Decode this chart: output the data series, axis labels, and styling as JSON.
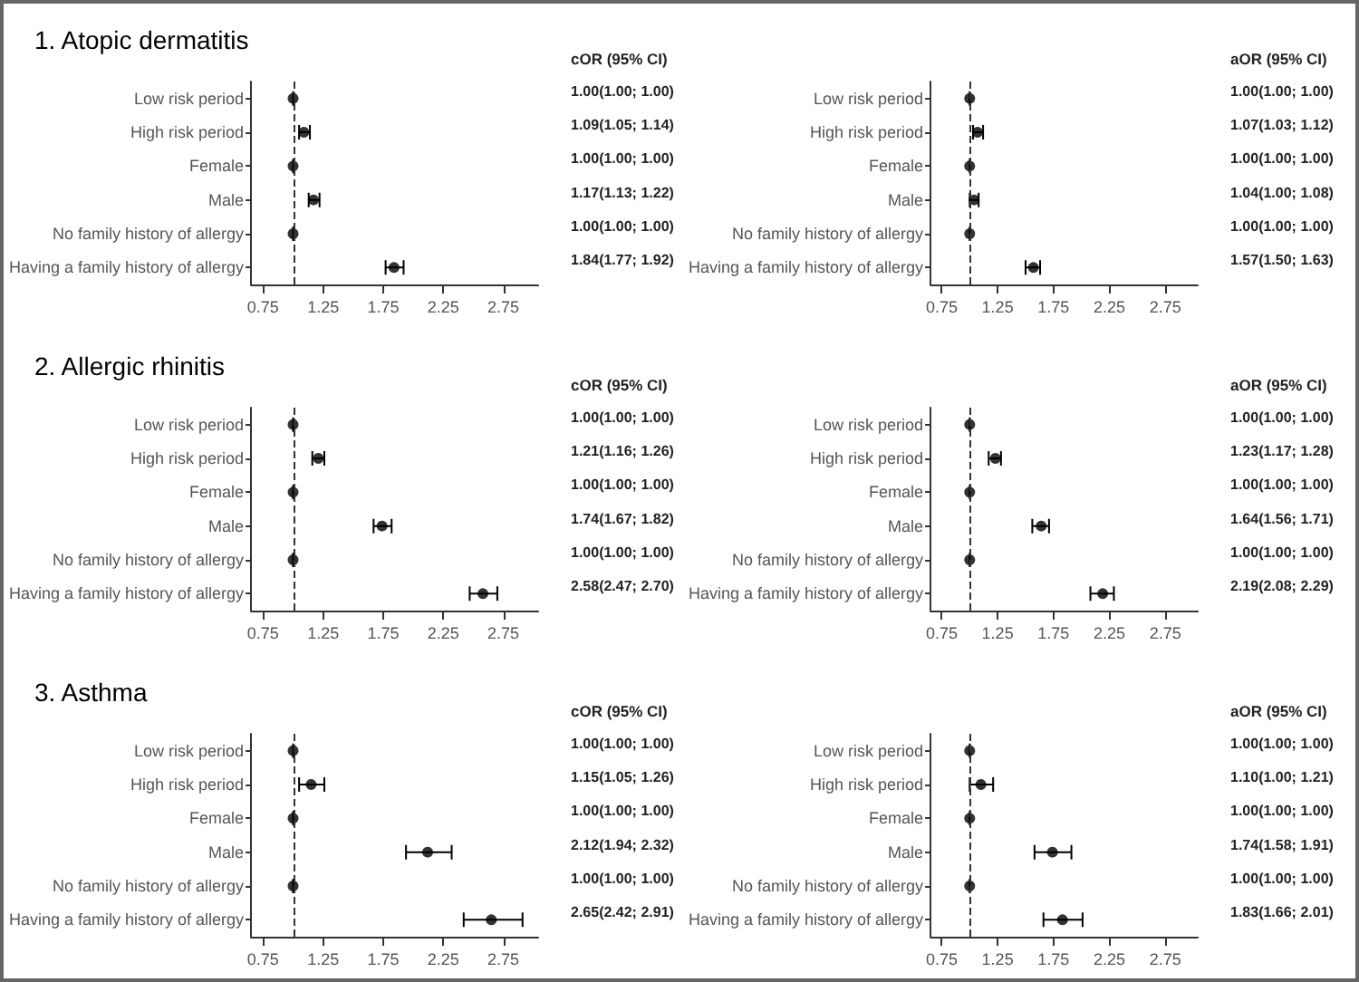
{
  "chart_data": [
    {
      "type": "scatter",
      "orientation": "horizontal",
      "title": "1. Atopic dermatitis",
      "annotations": [
        "cOR (95% CI)"
      ],
      "categories": [
        "Low risk period",
        "High risk period",
        "Female",
        "Male",
        "No family history of allergy",
        "Having a family history of allergy"
      ],
      "values": [
        1.0,
        1.09,
        1.0,
        1.17,
        1.0,
        1.84
      ],
      "errors": [
        [
          1.0,
          1.0
        ],
        [
          1.05,
          1.14
        ],
        [
          1.0,
          1.0
        ],
        [
          1.13,
          1.22
        ],
        [
          1.0,
          1.0
        ],
        [
          1.77,
          1.92
        ]
      ],
      "value_labels": [
        "1.00(1.00; 1.00)",
        "1.09(1.05; 1.14)",
        "1.00(1.00; 1.00)",
        "1.17(1.13; 1.22)",
        "1.00(1.00; 1.00)",
        "1.84(1.77; 1.92)"
      ],
      "color": "#000000",
      "marker": "circle",
      "xlim": [
        0.65,
        3.04
      ],
      "xticks": [
        0.75,
        1.25,
        1.75,
        2.25,
        2.75
      ],
      "ref_lines": [
        {
          "axis": "x",
          "value": 1,
          "line_style": "dashed"
        }
      ],
      "grid": false
    },
    {
      "type": "scatter",
      "orientation": "horizontal",
      "annotations": [
        "aOR (95% CI)"
      ],
      "categories": [
        "Low risk period",
        "High risk period",
        "Female",
        "Male",
        "No family history of allergy",
        "Having a family history of allergy"
      ],
      "values": [
        1.0,
        1.07,
        1.0,
        1.04,
        1.0,
        1.57
      ],
      "errors": [
        [
          1.0,
          1.0
        ],
        [
          1.03,
          1.12
        ],
        [
          1.0,
          1.0
        ],
        [
          1.0,
          1.08
        ],
        [
          1.0,
          1.0
        ],
        [
          1.5,
          1.63
        ]
      ],
      "value_labels": [
        "1.00(1.00; 1.00)",
        "1.07(1.03; 1.12)",
        "1.00(1.00; 1.00)",
        "1.04(1.00; 1.08)",
        "1.00(1.00; 1.00)",
        "1.57(1.50; 1.63)"
      ],
      "color": "#000000",
      "marker": "circle",
      "xlim": [
        0.65,
        3.04
      ],
      "xticks": [
        0.75,
        1.25,
        1.75,
        2.25,
        2.75
      ],
      "ref_lines": [
        {
          "axis": "x",
          "value": 1,
          "line_style": "dashed"
        }
      ],
      "grid": false
    },
    {
      "type": "scatter",
      "orientation": "horizontal",
      "title": "2. Allergic rhinitis",
      "annotations": [
        "cOR (95% CI)"
      ],
      "categories": [
        "Low risk period",
        "High risk period",
        "Female",
        "Male",
        "No family history of allergy",
        "Having a family history of allergy"
      ],
      "values": [
        1.0,
        1.21,
        1.0,
        1.74,
        1.0,
        2.58
      ],
      "errors": [
        [
          1.0,
          1.0
        ],
        [
          1.16,
          1.26
        ],
        [
          1.0,
          1.0
        ],
        [
          1.67,
          1.82
        ],
        [
          1.0,
          1.0
        ],
        [
          2.47,
          2.7
        ]
      ],
      "value_labels": [
        "1.00(1.00; 1.00)",
        "1.21(1.16; 1.26)",
        "1.00(1.00; 1.00)",
        "1.74(1.67; 1.82)",
        "1.00(1.00; 1.00)",
        "2.58(2.47; 2.70)"
      ],
      "color": "#000000",
      "marker": "circle",
      "xlim": [
        0.65,
        3.04
      ],
      "xticks": [
        0.75,
        1.25,
        1.75,
        2.25,
        2.75
      ],
      "ref_lines": [
        {
          "axis": "x",
          "value": 1,
          "line_style": "dashed"
        }
      ],
      "grid": false
    },
    {
      "type": "scatter",
      "orientation": "horizontal",
      "annotations": [
        "aOR (95% CI)"
      ],
      "categories": [
        "Low risk period",
        "High risk period",
        "Female",
        "Male",
        "No family history of allergy",
        "Having a family history of allergy"
      ],
      "values": [
        1.0,
        1.23,
        1.0,
        1.64,
        1.0,
        2.19
      ],
      "errors": [
        [
          1.0,
          1.0
        ],
        [
          1.17,
          1.28
        ],
        [
          1.0,
          1.0
        ],
        [
          1.56,
          1.71
        ],
        [
          1.0,
          1.0
        ],
        [
          2.08,
          2.29
        ]
      ],
      "value_labels": [
        "1.00(1.00; 1.00)",
        "1.23(1.17; 1.28)",
        "1.00(1.00; 1.00)",
        "1.64(1.56; 1.71)",
        "1.00(1.00; 1.00)",
        "2.19(2.08; 2.29)"
      ],
      "color": "#000000",
      "marker": "circle",
      "xlim": [
        0.65,
        3.04
      ],
      "xticks": [
        0.75,
        1.25,
        1.75,
        2.25,
        2.75
      ],
      "ref_lines": [
        {
          "axis": "x",
          "value": 1,
          "line_style": "dashed"
        }
      ],
      "grid": false
    },
    {
      "type": "scatter",
      "orientation": "horizontal",
      "title": "3. Asthma",
      "annotations": [
        "cOR (95% CI)"
      ],
      "categories": [
        "Low risk period",
        "High risk period",
        "Female",
        "Male",
        "No family history of allergy",
        "Having a family history of allergy"
      ],
      "values": [
        1.0,
        1.15,
        1.0,
        2.12,
        1.0,
        2.65
      ],
      "errors": [
        [
          1.0,
          1.0
        ],
        [
          1.05,
          1.26
        ],
        [
          1.0,
          1.0
        ],
        [
          1.94,
          2.32
        ],
        [
          1.0,
          1.0
        ],
        [
          2.42,
          2.91
        ]
      ],
      "value_labels": [
        "1.00(1.00; 1.00)",
        "1.15(1.05; 1.26)",
        "1.00(1.00; 1.00)",
        "2.12(1.94; 2.32)",
        "1.00(1.00; 1.00)",
        "2.65(2.42; 2.91)"
      ],
      "color": "#000000",
      "marker": "circle",
      "xlim": [
        0.65,
        3.04
      ],
      "xticks": [
        0.75,
        1.25,
        1.75,
        2.25,
        2.75
      ],
      "ref_lines": [
        {
          "axis": "x",
          "value": 1,
          "line_style": "dashed"
        }
      ],
      "grid": false
    },
    {
      "type": "scatter",
      "orientation": "horizontal",
      "annotations": [
        "aOR (95% CI)"
      ],
      "categories": [
        "Low risk period",
        "High risk period",
        "Female",
        "Male",
        "No family history of allergy",
        "Having a family history of allergy"
      ],
      "values": [
        1.0,
        1.1,
        1.0,
        1.74,
        1.0,
        1.83
      ],
      "errors": [
        [
          1.0,
          1.0
        ],
        [
          1.0,
          1.21
        ],
        [
          1.0,
          1.0
        ],
        [
          1.58,
          1.91
        ],
        [
          1.0,
          1.0
        ],
        [
          1.66,
          2.01
        ]
      ],
      "value_labels": [
        "1.00(1.00; 1.00)",
        "1.10(1.00; 1.21)",
        "1.00(1.00; 1.00)",
        "1.74(1.58; 1.91)",
        "1.00(1.00; 1.00)",
        "1.83(1.66; 2.01)"
      ],
      "color": "#000000",
      "marker": "circle",
      "xlim": [
        0.65,
        3.04
      ],
      "xticks": [
        0.75,
        1.25,
        1.75,
        2.25,
        2.75
      ],
      "ref_lines": [
        {
          "axis": "x",
          "value": 1,
          "line_style": "dashed"
        }
      ],
      "grid": false
    }
  ]
}
